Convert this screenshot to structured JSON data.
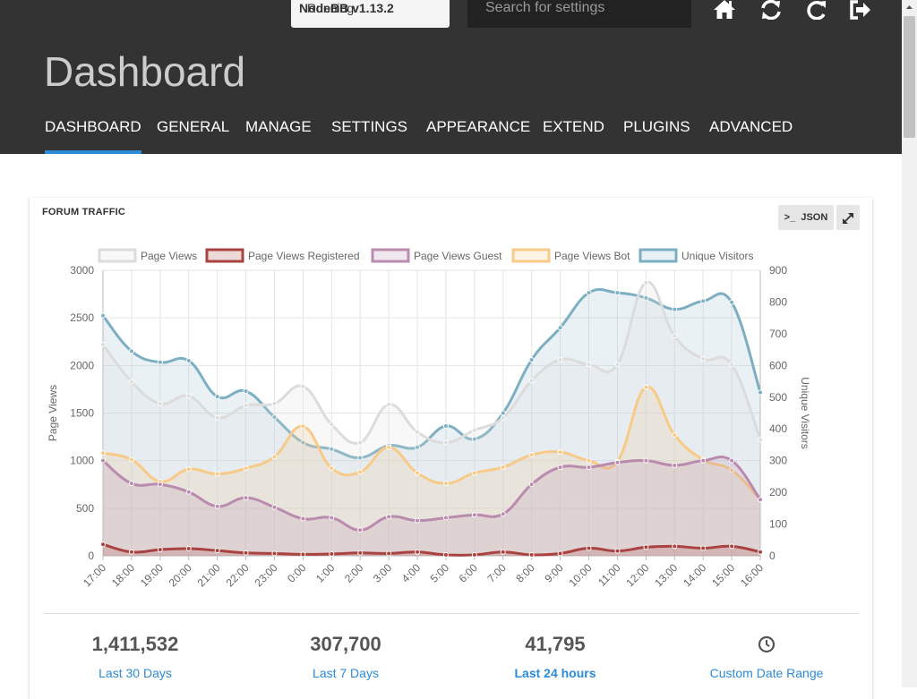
{
  "header": {
    "version_prefix": "Running ",
    "version_name": "NodeBB v1.13.2",
    "search_placeholder": "Search for settings",
    "title": "Dashboard"
  },
  "nav": [
    {
      "label": "DASHBOARD",
      "active": true
    },
    {
      "label": "GENERAL"
    },
    {
      "label": "MANAGE"
    },
    {
      "label": "SETTINGS"
    },
    {
      "label": "APPEARANCE"
    },
    {
      "label": "EXTEND"
    },
    {
      "label": "PLUGINS"
    },
    {
      "label": "ADVANCED"
    }
  ],
  "header_icons": [
    "home-icon",
    "refresh-icon",
    "restart-icon",
    "logout-icon"
  ],
  "panel": {
    "title": "FORUM TRAFFIC",
    "json_button": "JSON",
    "json_prefix": ">_"
  },
  "chart_data": {
    "type": "line",
    "ylabel": "Page Views",
    "y2label": "Unique Visitors",
    "ylim": [
      0,
      3000
    ],
    "y2lim": [
      0,
      900
    ],
    "yticks": [
      "0",
      "500",
      "1000",
      "1500",
      "2000",
      "2500",
      "3000"
    ],
    "y2ticks": [
      "0",
      "100",
      "200",
      "300",
      "400",
      "500",
      "600",
      "700",
      "800",
      "900"
    ],
    "x": [
      "17:00",
      "18:00",
      "19:00",
      "20:00",
      "21:00",
      "22:00",
      "23:00",
      "0:00",
      "1:00",
      "2:00",
      "3:00",
      "4:00",
      "5:00",
      "6:00",
      "7:00",
      "8:00",
      "9:00",
      "10:00",
      "11:00",
      "12:00",
      "13:00",
      "14:00",
      "15:00",
      "16:00"
    ],
    "series": [
      {
        "name": "Page Views",
        "axis": "left",
        "color": "#dcdcdc",
        "fill": "rgba(220,220,220,0.2)",
        "values": [
          2220,
          1830,
          1600,
          1680,
          1450,
          1580,
          1600,
          1780,
          1380,
          1190,
          1590,
          1300,
          1190,
          1320,
          1450,
          1840,
          2060,
          2010,
          2010,
          2870,
          2310,
          2070,
          2010,
          1220
        ]
      },
      {
        "name": "Page Views Registered",
        "axis": "left",
        "color": "#ab4242",
        "fill": "rgba(171,66,66,0.2)",
        "values": [
          120,
          40,
          65,
          75,
          55,
          30,
          25,
          15,
          20,
          30,
          25,
          40,
          10,
          10,
          40,
          10,
          25,
          80,
          50,
          90,
          100,
          80,
          100,
          40
        ]
      },
      {
        "name": "Page Views Guest",
        "axis": "left",
        "color": "#ba8baf",
        "fill": "rgba(186,139,175,0.2)",
        "values": [
          1000,
          760,
          750,
          670,
          520,
          610,
          510,
          390,
          400,
          270,
          410,
          370,
          400,
          430,
          440,
          750,
          930,
          930,
          980,
          1000,
          950,
          1000,
          1000,
          590
        ]
      },
      {
        "name": "Page Views Bot",
        "axis": "left",
        "color": "#f7ca88",
        "fill": "rgba(247,202,136,0.2)",
        "values": [
          1080,
          1010,
          780,
          910,
          860,
          920,
          1040,
          1360,
          920,
          880,
          1140,
          870,
          760,
          870,
          930,
          1060,
          1090,
          1000,
          990,
          1770,
          1270,
          1010,
          900,
          590
        ]
      },
      {
        "name": "Unique Visitors",
        "axis": "right",
        "color": "#7cafc2",
        "fill": "rgba(151,187,205,0.2)",
        "values": [
          757,
          645,
          610,
          615,
          502,
          519,
          437,
          357,
          336,
          309,
          347,
          342,
          409,
          368,
          450,
          618,
          719,
          829,
          829,
          813,
          777,
          803,
          799,
          515
        ]
      }
    ]
  },
  "stats": [
    {
      "value": "1,411,532",
      "label": "Last 30 Days"
    },
    {
      "value": "307,700",
      "label": "Last 7 Days"
    },
    {
      "value": "41,795",
      "label": "Last 24 hours",
      "bold": true
    },
    {
      "value": "",
      "label": "Custom Date Range",
      "icon": "clock-icon"
    }
  ]
}
